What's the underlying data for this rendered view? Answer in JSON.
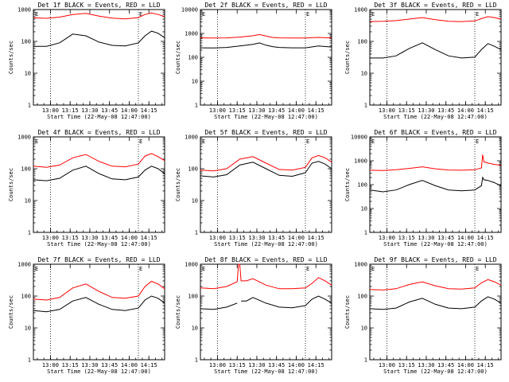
{
  "chart_data": [
    {
      "type": "line",
      "title": "Det 1f BLACK = Events, RED = LLD",
      "xlabel": "Start Time (22-May-08 12:47:00)",
      "ylabel": "Counts/sec",
      "y_log": true,
      "ylim": [
        1,
        1000
      ],
      "ytick_labels": [
        "1",
        "10",
        "100",
        "1000"
      ],
      "xlim_minutes": [
        0,
        100
      ],
      "x_ticks_minutes": [
        13,
        28,
        43,
        58,
        73,
        88
      ],
      "x_tick_labels": [
        "13:00",
        "13:15",
        "13:30",
        "13:45",
        "14:00",
        "14:15"
      ],
      "dotted_lines_minutes": [
        13,
        80
      ],
      "markers": {
        "left": "E",
        "right": "E"
      },
      "series": [
        {
          "color": "#ff0000",
          "x": [
            0,
            10,
            20,
            30,
            40,
            50,
            60,
            70,
            80,
            85,
            90,
            95,
            100
          ],
          "y": [
            550,
            530,
            580,
            700,
            760,
            620,
            540,
            510,
            560,
            700,
            780,
            700,
            600
          ]
        },
        {
          "color": "#000000",
          "x": [
            0,
            10,
            20,
            30,
            40,
            50,
            60,
            70,
            80,
            85,
            90,
            95,
            100
          ],
          "y": [
            70,
            70,
            90,
            170,
            150,
            95,
            75,
            72,
            90,
            150,
            210,
            180,
            130
          ]
        }
      ]
    },
    {
      "type": "line",
      "title": "Det 2f BLACK = Events, RED = LLD",
      "xlabel": "Start Time (22-May-08 12:47:00)",
      "ylabel": "Counts/sec",
      "y_log": true,
      "ylim": [
        1,
        10000
      ],
      "ytick_labels": [
        "1",
        "10",
        "100",
        "1000",
        "10000"
      ],
      "xlim_minutes": [
        0,
        100
      ],
      "x_ticks_minutes": [
        13,
        28,
        43,
        58,
        73,
        88
      ],
      "x_tick_labels": [
        "13:00",
        "13:15",
        "13:30",
        "13:45",
        "14:00",
        "14:15"
      ],
      "dotted_lines_minutes": [
        13,
        80
      ],
      "markers": {
        "left": "E",
        "right": "E"
      },
      "series": [
        {
          "color": "#ff0000",
          "x": [
            0,
            10,
            20,
            30,
            40,
            45,
            50,
            55,
            60,
            70,
            80,
            90,
            100
          ],
          "y": [
            650,
            640,
            650,
            700,
            800,
            900,
            780,
            680,
            650,
            640,
            640,
            680,
            640
          ]
        },
        {
          "color": "#000000",
          "x": [
            0,
            10,
            20,
            30,
            40,
            45,
            50,
            55,
            60,
            70,
            80,
            90,
            100
          ],
          "y": [
            250,
            245,
            260,
            300,
            350,
            400,
            320,
            280,
            260,
            250,
            250,
            300,
            270
          ]
        }
      ]
    },
    {
      "type": "line",
      "title": "Det 3f BLACK = Events, RED = LLD",
      "xlabel": "Start Time (22-May-08 12:47:00)",
      "ylabel": "Counts/sec",
      "y_log": true,
      "ylim": [
        1,
        1000
      ],
      "ytick_labels": [
        "1",
        "10",
        "100",
        "1000"
      ],
      "xlim_minutes": [
        0,
        100
      ],
      "x_ticks_minutes": [
        13,
        28,
        43,
        58,
        73,
        88
      ],
      "x_tick_labels": [
        "13:00",
        "13:15",
        "13:30",
        "13:45",
        "14:00",
        "14:15"
      ],
      "dotted_lines_minutes": [
        13,
        80
      ],
      "markers": {
        "left": "E",
        "right": "E"
      },
      "series": [
        {
          "color": "#ff0000",
          "x": [
            0,
            10,
            20,
            30,
            40,
            50,
            60,
            70,
            80,
            85,
            90,
            95,
            100
          ],
          "y": [
            420,
            430,
            450,
            500,
            560,
            480,
            430,
            420,
            440,
            520,
            600,
            560,
            500
          ]
        },
        {
          "color": "#000000",
          "x": [
            0,
            10,
            20,
            30,
            40,
            50,
            60,
            70,
            80,
            85,
            90,
            95,
            100
          ],
          "y": [
            30,
            30,
            35,
            60,
            90,
            55,
            35,
            30,
            32,
            55,
            85,
            70,
            55
          ]
        }
      ]
    },
    {
      "type": "line",
      "title": "Det 4f BLACK = Events, RED = LLD",
      "xlabel": "Start Time (22-May-08 12:47:00)",
      "ylabel": "Counts/sec",
      "y_log": true,
      "ylim": [
        1,
        1000
      ],
      "ytick_labels": [
        "1",
        "10",
        "100",
        "1000"
      ],
      "xlim_minutes": [
        0,
        100
      ],
      "x_ticks_minutes": [
        13,
        28,
        43,
        58,
        73,
        88
      ],
      "x_tick_labels": [
        "13:00",
        "13:15",
        "13:30",
        "13:45",
        "14:00",
        "14:15"
      ],
      "dotted_lines_minutes": [
        13,
        80
      ],
      "markers": {
        "left": "E",
        "right": "E"
      },
      "series": [
        {
          "color": "#ff0000",
          "x": [
            0,
            10,
            20,
            30,
            40,
            50,
            60,
            70,
            80,
            85,
            90,
            95,
            100
          ],
          "y": [
            120,
            110,
            130,
            220,
            280,
            170,
            120,
            115,
            140,
            250,
            300,
            240,
            180
          ]
        },
        {
          "color": "#000000",
          "x": [
            0,
            10,
            20,
            30,
            40,
            50,
            60,
            70,
            80,
            85,
            90,
            95,
            100
          ],
          "y": [
            45,
            42,
            50,
            90,
            120,
            70,
            48,
            45,
            55,
            90,
            120,
            100,
            70
          ]
        }
      ]
    },
    {
      "type": "line",
      "title": "Det 5f BLACK = Events, RED = LLD",
      "xlabel": "Start Time (22-May-08 12:47:00)",
      "ylabel": "Counts/sec",
      "y_log": true,
      "ylim": [
        1,
        1000
      ],
      "ytick_labels": [
        "1",
        "10",
        "100",
        "1000"
      ],
      "xlim_minutes": [
        0,
        100
      ],
      "x_ticks_minutes": [
        13,
        28,
        43,
        58,
        73,
        88
      ],
      "x_tick_labels": [
        "13:00",
        "13:15",
        "13:30",
        "13:45",
        "14:00",
        "14:15"
      ],
      "dotted_lines_minutes": [
        13,
        80
      ],
      "markers": {
        "left": "E",
        "right": "E"
      },
      "series": [
        {
          "color": "#ff0000",
          "x": [
            0,
            10,
            20,
            30,
            40,
            50,
            60,
            70,
            80,
            85,
            90,
            95,
            100
          ],
          "y": [
            90,
            85,
            100,
            200,
            240,
            150,
            95,
            90,
            110,
            220,
            260,
            220,
            160
          ]
        },
        {
          "color": "#000000",
          "x": [
            0,
            10,
            20,
            30,
            40,
            50,
            60,
            70,
            80,
            85,
            90,
            95,
            100
          ],
          "y": [
            60,
            55,
            65,
            130,
            160,
            100,
            62,
            58,
            75,
            150,
            170,
            140,
            100
          ]
        }
      ]
    },
    {
      "type": "line",
      "title": "Det 6f BLACK = Events, RED = LLD",
      "xlabel": "Start Time (22-May-08 12:47:00)",
      "ylabel": "Counts/sec",
      "y_log": true,
      "ylim": [
        1,
        10000
      ],
      "ytick_labels": [
        "1",
        "10",
        "100",
        "1000",
        "10000"
      ],
      "xlim_minutes": [
        0,
        100
      ],
      "x_ticks_minutes": [
        13,
        28,
        43,
        58,
        73,
        88
      ],
      "x_tick_labels": [
        "13:00",
        "13:15",
        "13:30",
        "13:45",
        "14:00",
        "14:15"
      ],
      "dotted_lines_minutes": [
        13,
        80
      ],
      "markers": {
        "left": "E",
        "right": "E"
      },
      "series": [
        {
          "color": "#ff0000",
          "x": [
            0,
            10,
            20,
            30,
            40,
            50,
            60,
            70,
            80,
            85,
            86,
            87,
            90,
            95,
            100
          ],
          "y": [
            400,
            390,
            420,
            480,
            560,
            460,
            410,
            400,
            420,
            500,
            1800,
            900,
            800,
            700,
            650
          ]
        },
        {
          "color": "#000000",
          "x": [
            0,
            10,
            20,
            30,
            40,
            50,
            60,
            70,
            80,
            85,
            86,
            87,
            90,
            95,
            100
          ],
          "y": [
            60,
            50,
            60,
            100,
            150,
            90,
            60,
            55,
            60,
            90,
            200,
            160,
            150,
            120,
            90
          ]
        }
      ]
    },
    {
      "type": "line",
      "title": "Det 7f BLACK = Events, RED = LLD",
      "xlabel": "Start Time (22-May-08 12:47:00)",
      "ylabel": "Counts/sec",
      "y_log": true,
      "ylim": [
        1,
        1000
      ],
      "ytick_labels": [
        "1",
        "10",
        "100",
        "1000"
      ],
      "xlim_minutes": [
        0,
        100
      ],
      "x_ticks_minutes": [
        13,
        28,
        43,
        58,
        73,
        88
      ],
      "x_tick_labels": [
        "13:00",
        "13:15",
        "13:30",
        "13:45",
        "14:00",
        "14:15"
      ],
      "dotted_lines_minutes": [
        13,
        80
      ],
      "markers": {
        "left": "E",
        "right": "E"
      },
      "series": [
        {
          "color": "#ff0000",
          "x": [
            0,
            10,
            20,
            30,
            40,
            50,
            60,
            70,
            80,
            85,
            90,
            95,
            100
          ],
          "y": [
            80,
            75,
            90,
            180,
            240,
            140,
            90,
            85,
            100,
            200,
            290,
            240,
            170
          ]
        },
        {
          "color": "#000000",
          "x": [
            0,
            10,
            20,
            30,
            40,
            50,
            60,
            70,
            80,
            85,
            90,
            95,
            100
          ],
          "y": [
            35,
            32,
            38,
            70,
            90,
            55,
            38,
            35,
            42,
            75,
            100,
            85,
            60
          ]
        }
      ]
    },
    {
      "type": "line",
      "title": "Det 8f BLACK = Events, RED = LLD",
      "xlabel": "Start Time (22-May-08 12:47:00)",
      "ylabel": "Counts/sec",
      "y_log": true,
      "ylim": [
        1,
        1000
      ],
      "ytick_labels": [
        "1",
        "10",
        "100",
        "1000"
      ],
      "xlim_minutes": [
        0,
        100
      ],
      "x_ticks_minutes": [
        13,
        28,
        43,
        58,
        73,
        88
      ],
      "x_tick_labels": [
        "13:00",
        "13:15",
        "13:30",
        "13:45",
        "14:00",
        "14:15"
      ],
      "dotted_lines_minutes": [
        13,
        80
      ],
      "markers": {
        "left": "E",
        "right": "E"
      },
      "series": [
        {
          "color": "#ff0000",
          "x": [
            0,
            10,
            20,
            28,
            29,
            30,
            31,
            35,
            40,
            50,
            60,
            70,
            80,
            85,
            90,
            95,
            100
          ],
          "y": [
            180,
            170,
            200,
            280,
            1000,
            1000,
            300,
            300,
            350,
            220,
            170,
            170,
            180,
            250,
            380,
            300,
            220
          ]
        },
        {
          "color": "#000000",
          "x": [
            0,
            10,
            20,
            28,
            29,
            30,
            31,
            35,
            40,
            50,
            60,
            70,
            80,
            85,
            90,
            95,
            100
          ],
          "y": [
            40,
            38,
            45,
            60,
            null,
            null,
            70,
            70,
            90,
            60,
            45,
            43,
            50,
            80,
            100,
            80,
            60
          ]
        }
      ]
    },
    {
      "type": "line",
      "title": "Det 9f BLACK = Events, RED = LLD",
      "xlabel": "Start Time (22-May-08 12:47:00)",
      "ylabel": "Counts/sec",
      "y_log": true,
      "ylim": [
        1,
        1000
      ],
      "ytick_labels": [
        "1",
        "10",
        "100",
        "1000"
      ],
      "xlim_minutes": [
        0,
        100
      ],
      "x_ticks_minutes": [
        13,
        28,
        43,
        58,
        73,
        88
      ],
      "x_tick_labels": [
        "13:00",
        "13:15",
        "13:30",
        "13:45",
        "14:00",
        "14:15"
      ],
      "dotted_lines_minutes": [
        13,
        80
      ],
      "markers": {
        "left": "E",
        "right": "E"
      },
      "series": [
        {
          "color": "#ff0000",
          "x": [
            0,
            10,
            20,
            30,
            40,
            50,
            60,
            70,
            80,
            85,
            90,
            95,
            100
          ],
          "y": [
            160,
            155,
            170,
            230,
            280,
            210,
            170,
            165,
            180,
            260,
            330,
            280,
            220
          ]
        },
        {
          "color": "#000000",
          "x": [
            0,
            10,
            20,
            30,
            40,
            50,
            60,
            70,
            80,
            85,
            90,
            95,
            100
          ],
          "y": [
            40,
            38,
            42,
            65,
            85,
            55,
            42,
            40,
            45,
            70,
            95,
            80,
            60
          ]
        }
      ]
    }
  ]
}
